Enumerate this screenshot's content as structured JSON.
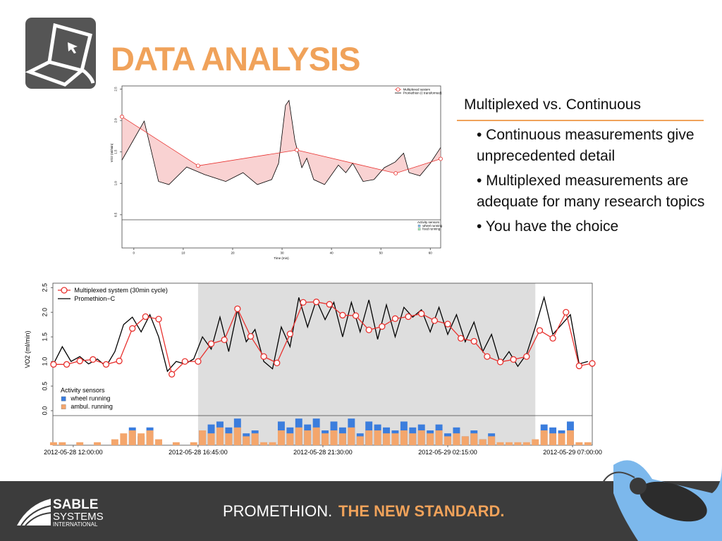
{
  "header": {
    "title": "DATA ANALYSIS"
  },
  "bullets": {
    "heading": "Multiplexed vs. Continuous",
    "items": [
      "• Continuous measurements give unprecedented detail",
      "• Multiplexed measurements are adequate for many research topics",
      "• You have the choice"
    ]
  },
  "footer": {
    "logo": [
      "SABLE",
      "SYSTEMS",
      "INTERNATIONAL"
    ],
    "tagline_light": "PROMETHION.",
    "tagline_bold": "THE NEW STANDARD."
  },
  "chart_data": [
    {
      "type": "line",
      "y_label": "VO2 (ml/min)",
      "x_label": "Time (min)",
      "fill_between": true,
      "xlim": [
        -2.4,
        62.1
      ],
      "ylim": [
        0.42,
        2.55
      ],
      "xticks": [
        0,
        10,
        20,
        30,
        40,
        50,
        60
      ],
      "yticks": [
        0.5,
        {
          "value": 1,
          "label": "1.0"
        },
        1.5,
        {
          "value": 2,
          "label": "2.0"
        },
        2.5
      ],
      "series": [
        {
          "name": "Multiplexed system",
          "color": "#e8312e",
          "markers": true,
          "x": [
            -2.4,
            13,
            33,
            53,
            62.1
          ],
          "values": [
            2.06,
            1.28,
            1.53,
            1.16,
            1.39
          ]
        },
        {
          "name": "Promethion (c transformed)",
          "color": "#000000",
          "x": [
            -2.4,
            2.1,
            5.0,
            7.1,
            10.7,
            14.3,
            18.6,
            22.1,
            25.0,
            27.9,
            29.3,
            30.7,
            31.4,
            32.6,
            34.0,
            35.0,
            36.4,
            38.6,
            41.4,
            42.9,
            44.3,
            46.4,
            48.6,
            50.7,
            52.9,
            54.6,
            55.7,
            57.9,
            60.0,
            62.1
          ],
          "values": [
            1.37,
            1.99,
            1.03,
            0.98,
            1.26,
            1.14,
            1.03,
            1.17,
            0.98,
            1.06,
            1.32,
            2.24,
            2.32,
            1.68,
            1.25,
            1.4,
            1.06,
            0.98,
            1.29,
            1.17,
            1.32,
            1.03,
            1.06,
            1.25,
            1.34,
            1.48,
            1.17,
            1.12,
            1.32,
            1.57
          ]
        }
      ],
      "activity": {
        "title": "Activity sensors",
        "series": [
          {
            "name": "wheel running",
            "color": "#7ab8e8"
          },
          {
            "name": "food running",
            "color": "#9be8b0"
          }
        ]
      }
    },
    {
      "type": "line",
      "y_label": "VO2 (ml/min)",
      "xlim": [
        "2012-05-28 11:13:30",
        "2012-05-29 07:45:00"
      ],
      "ylim": [
        -0.1,
        2.59
      ],
      "xticks": [
        "2012-05-28 12:00:00",
        "2012-05-28 16:45:00",
        "2012-05-28 21:30:00",
        "2012-05-29 02:15:00",
        "2012-05-29 07:00:00"
      ],
      "yticks": [
        {
          "value": 0,
          "label": "0.0"
        },
        0.5,
        {
          "value": 1,
          "label": "1.0"
        },
        1.5,
        {
          "value": 2,
          "label": "2.0"
        },
        2.5
      ],
      "dark_period": [
        "2012-05-28 16:45:00",
        "2012-05-29 05:35:00"
      ],
      "series": [
        {
          "name": "Multiplexed system (30min cycle)",
          "color": "#e8312e",
          "markers": true,
          "x": [
            "2012-05-28 11:15:00",
            "2012-05-28 11:45:00",
            "2012-05-28 12:15:00",
            "2012-05-28 12:45:00",
            "2012-05-28 13:15:00",
            "2012-05-28 13:45:00",
            "2012-05-28 14:15:00",
            "2012-05-28 14:45:00",
            "2012-05-28 15:15:00",
            "2012-05-28 15:45:00",
            "2012-05-28 16:15:00",
            "2012-05-28 16:45:00",
            "2012-05-28 17:15:00",
            "2012-05-28 17:45:00",
            "2012-05-28 18:15:00",
            "2012-05-28 18:45:00",
            "2012-05-28 19:15:00",
            "2012-05-28 19:45:00",
            "2012-05-28 20:15:00",
            "2012-05-28 20:45:00",
            "2012-05-28 21:15:00",
            "2012-05-28 21:45:00",
            "2012-05-28 22:15:00",
            "2012-05-28 22:45:00",
            "2012-05-28 23:15:00",
            "2012-05-28 23:45:00",
            "2012-05-29 00:15:00",
            "2012-05-29 00:45:00",
            "2012-05-29 01:15:00",
            "2012-05-29 01:45:00",
            "2012-05-29 02:15:00",
            "2012-05-29 02:45:00",
            "2012-05-29 03:15:00",
            "2012-05-29 03:45:00",
            "2012-05-29 04:15:00",
            "2012-05-29 04:45:00",
            "2012-05-29 05:15:00",
            "2012-05-29 05:45:00",
            "2012-05-29 06:15:00",
            "2012-05-29 06:45:00",
            "2012-05-29 07:15:00",
            "2012-05-29 07:45:00"
          ],
          "values": [
            0.94,
            0.94,
            1.01,
            1.04,
            0.94,
            1.01,
            1.67,
            1.91,
            1.86,
            0.74,
            1.0,
            1.0,
            1.36,
            1.44,
            2.07,
            1.51,
            1.1,
            0.97,
            1.56,
            2.2,
            2.21,
            2.16,
            1.94,
            1.93,
            1.64,
            1.71,
            1.87,
            1.91,
            1.97,
            1.83,
            1.76,
            1.47,
            1.41,
            1.1,
            0.99,
            1.04,
            1.1,
            1.63,
            1.47,
            2.0,
            0.91,
            0.96
          ]
        },
        {
          "name": "Promethion−C",
          "color": "#000000",
          "x": [
            "2012-05-28 11:15:00",
            "2012-05-28 11:35:00",
            "2012-05-28 11:55:00",
            "2012-05-28 12:15:00",
            "2012-05-28 12:35:00",
            "2012-05-28 12:55:00",
            "2012-05-28 13:15:00",
            "2012-05-28 13:35:00",
            "2012-05-28 13:55:00",
            "2012-05-28 14:15:00",
            "2012-05-28 14:35:00",
            "2012-05-28 14:55:00",
            "2012-05-28 15:15:00",
            "2012-05-28 15:35:00",
            "2012-05-28 15:55:00",
            "2012-05-28 16:15:00",
            "2012-05-28 16:35:00",
            "2012-05-28 16:55:00",
            "2012-05-28 17:15:00",
            "2012-05-28 17:35:00",
            "2012-05-28 17:55:00",
            "2012-05-28 18:15:00",
            "2012-05-28 18:35:00",
            "2012-05-28 18:55:00",
            "2012-05-28 19:15:00",
            "2012-05-28 19:35:00",
            "2012-05-28 19:55:00",
            "2012-05-28 20:15:00",
            "2012-05-28 20:35:00",
            "2012-05-28 20:55:00",
            "2012-05-28 21:15:00",
            "2012-05-28 21:35:00",
            "2012-05-28 21:55:00",
            "2012-05-28 22:15:00",
            "2012-05-28 22:35:00",
            "2012-05-28 22:55:00",
            "2012-05-28 23:15:00",
            "2012-05-28 23:35:00",
            "2012-05-28 23:55:00",
            "2012-05-29 00:15:00",
            "2012-05-29 00:35:00",
            "2012-05-29 00:55:00",
            "2012-05-29 01:15:00",
            "2012-05-29 01:35:00",
            "2012-05-29 01:55:00",
            "2012-05-29 02:15:00",
            "2012-05-29 02:35:00",
            "2012-05-29 02:55:00",
            "2012-05-29 03:15:00",
            "2012-05-29 03:35:00",
            "2012-05-29 03:55:00",
            "2012-05-29 04:15:00",
            "2012-05-29 04:35:00",
            "2012-05-29 04:55:00",
            "2012-05-29 05:15:00",
            "2012-05-29 05:35:00",
            "2012-05-29 05:55:00",
            "2012-05-29 06:15:00",
            "2012-05-29 06:35:00",
            "2012-05-29 06:55:00",
            "2012-05-29 07:15:00",
            "2012-05-29 07:35:00"
          ],
          "values": [
            0.95,
            1.3,
            1.0,
            1.1,
            0.95,
            1.05,
            0.9,
            1.2,
            1.75,
            1.9,
            1.6,
            1.95,
            1.5,
            0.8,
            1.0,
            0.95,
            1.05,
            1.5,
            1.25,
            1.9,
            1.2,
            2.05,
            1.4,
            1.65,
            1.0,
            0.85,
            1.7,
            1.3,
            2.3,
            1.7,
            2.25,
            1.85,
            2.2,
            1.5,
            2.2,
            1.6,
            2.25,
            1.45,
            2.15,
            1.5,
            2.1,
            1.9,
            2.05,
            1.6,
            2.1,
            1.55,
            1.95,
            1.4,
            1.8,
            1.2,
            1.55,
            0.95,
            1.2,
            0.9,
            1.15,
            1.7,
            2.3,
            1.55,
            1.75,
            1.95,
            0.95,
            1.0
          ]
        }
      ],
      "activity": {
        "title": "Activity sensors",
        "series": [
          {
            "name": "wheel running",
            "color": "#3b7ddd",
            "values": [
              0,
              0,
              0,
              0,
              0,
              0,
              0,
              0,
              0,
              6,
              3,
              6,
              0,
              0,
              0,
              0,
              0,
              5,
              7,
              8,
              6,
              9,
              4,
              5,
              0,
              0,
              8,
              6,
              9,
              7,
              9,
              5,
              8,
              6,
              9,
              4,
              8,
              7,
              6,
              5,
              8,
              6,
              7,
              5,
              7,
              4,
              6,
              3,
              5,
              2,
              4,
              0,
              0,
              0,
              0,
              0,
              7,
              6,
              5,
              8,
              0,
              0
            ]
          },
          {
            "name": "ambul. running",
            "color": "#f4a66c",
            "values": [
              1,
              1,
              0,
              1,
              0,
              1,
              0,
              2,
              4,
              5,
              4,
              5,
              2,
              0,
              1,
              0,
              1,
              5,
              4,
              6,
              4,
              6,
              3,
              4,
              1,
              1,
              5,
              4,
              6,
              5,
              6,
              4,
              5,
              4,
              6,
              3,
              5,
              5,
              4,
              4,
              5,
              4,
              5,
              4,
              5,
              3,
              4,
              3,
              4,
              2,
              3,
              1,
              1,
              1,
              1,
              2,
              5,
              4,
              4,
              5,
              1,
              1
            ]
          }
        ]
      }
    }
  ]
}
